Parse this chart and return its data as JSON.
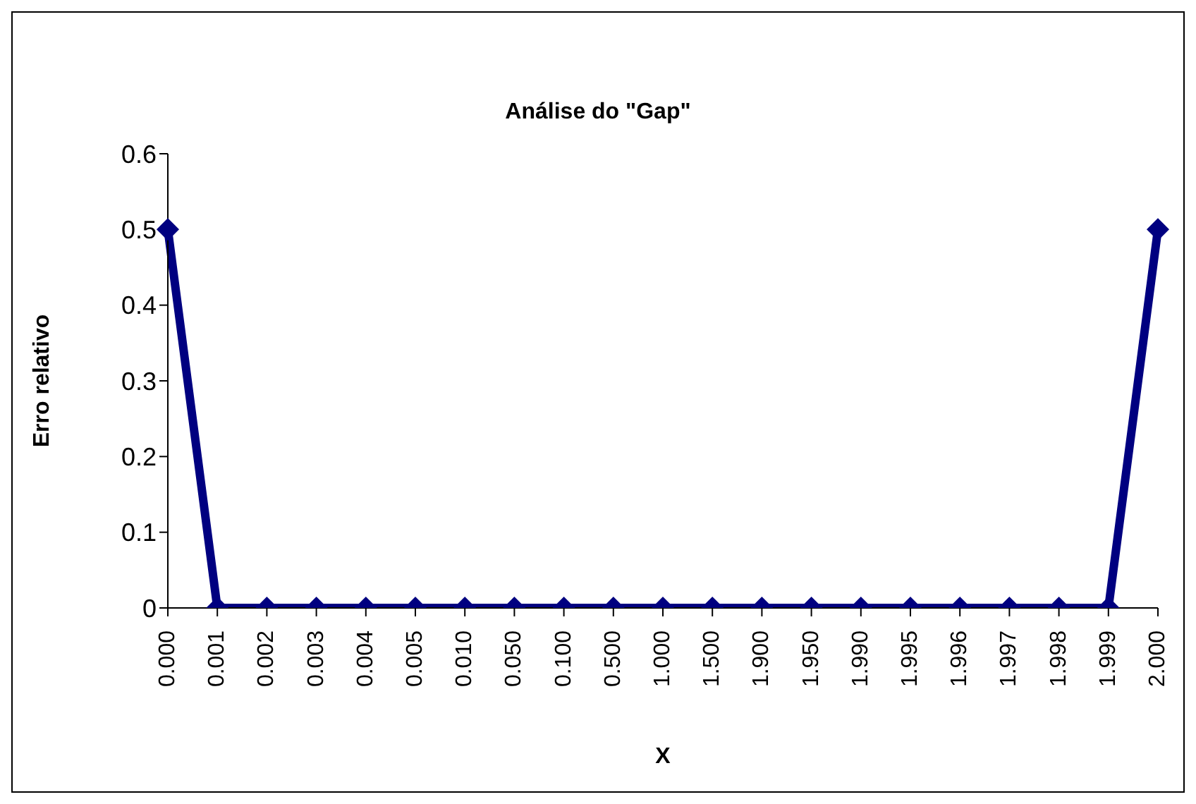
{
  "chart_data": {
    "type": "line",
    "title": "Análise do \"Gap\"",
    "xlabel": "X",
    "ylabel": "Erro relativo",
    "categories": [
      "0.000",
      "0.001",
      "0.002",
      "0.003",
      "0.004",
      "0.005",
      "0.010",
      "0.050",
      "0.100",
      "0.500",
      "1.000",
      "1.500",
      "1.900",
      "1.950",
      "1.990",
      "1.995",
      "1.996",
      "1.997",
      "1.998",
      "1.999",
      "2.000"
    ],
    "series": [
      {
        "color": "#000080",
        "values": [
          0.5,
          0,
          0,
          0,
          0,
          0,
          0,
          0,
          0,
          0,
          0,
          0,
          0,
          0,
          0,
          0,
          0,
          0,
          0,
          0,
          0.5
        ]
      }
    ],
    "ylim": [
      0,
      0.6
    ],
    "yticks": [
      0,
      0.1,
      0.2,
      0.3,
      0.4,
      0.5,
      0.6
    ],
    "grid": false,
    "legend": false,
    "marker": "diamond",
    "line_style": "solid"
  }
}
